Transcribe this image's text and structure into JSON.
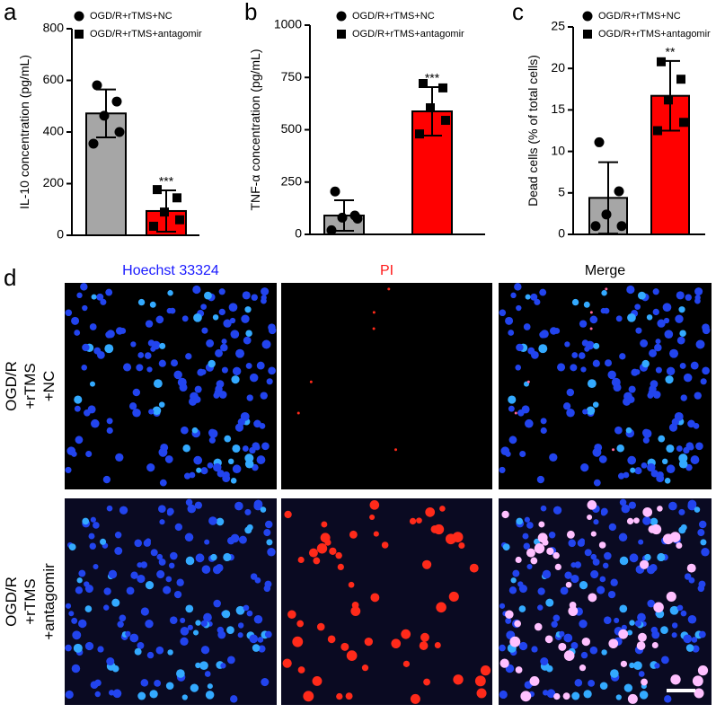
{
  "chart_data": [
    {
      "type": "bar",
      "panel_label": "a",
      "ylabel": "IL-10 concentration (pg/mL)",
      "ylim": [
        0,
        800
      ],
      "yticks": [
        0,
        200,
        400,
        600,
        800
      ],
      "annotation": "***",
      "series": [
        {
          "name": "OGD/R+rTMS+NC",
          "color": "#a6a6a6",
          "marker": "circle",
          "values": [
            472
          ],
          "errors": [
            93
          ],
          "points": [
            581,
            518,
            463,
            400,
            355
          ]
        },
        {
          "name": "OGD/R+rTMS+antagomir",
          "color": "#ff0000",
          "marker": "square",
          "values": [
            94
          ],
          "errors": [
            80
          ],
          "points": [
            177,
            145,
            90,
            60,
            35
          ]
        }
      ]
    },
    {
      "type": "bar",
      "panel_label": "b",
      "ylabel": "TNF-α concentration (pg/mL)",
      "ylim": [
        0,
        1000
      ],
      "yticks": [
        0,
        250,
        500,
        750,
        1000
      ],
      "annotation": "***",
      "series": [
        {
          "name": "OGD/R+rTMS+NC",
          "color": "#a6a6a6",
          "marker": "circle",
          "values": [
            90
          ],
          "errors": [
            73
          ],
          "points": [
            205,
            90,
            80,
            75,
            20
          ]
        },
        {
          "name": "OGD/R+rTMS+antagomir",
          "color": "#ff0000",
          "marker": "square",
          "values": [
            588
          ],
          "errors": [
            116
          ],
          "points": [
            721,
            700,
            605,
            545,
            480
          ]
        }
      ]
    },
    {
      "type": "bar",
      "panel_label": "c",
      "ylabel": "Dead cells (% of total cells)",
      "ylim": [
        0,
        25
      ],
      "yticks": [
        0,
        5,
        10,
        15,
        20,
        25
      ],
      "annotation": "**",
      "series": [
        {
          "name": "OGD/R+rTMS+NC",
          "color": "#a6a6a6",
          "marker": "circle",
          "values": [
            4.4
          ],
          "errors": [
            4.3
          ],
          "points": [
            11.1,
            5.2,
            2.4,
            1.0,
            1.0
          ]
        },
        {
          "name": "OGD/R+rTMS+antagomir",
          "color": "#ff0000",
          "marker": "square",
          "values": [
            16.7
          ],
          "errors": [
            4.2
          ],
          "points": [
            20.8,
            18.7,
            16.2,
            13.5,
            12.5
          ]
        }
      ]
    }
  ],
  "image_panel": {
    "panel_label": "d",
    "columns": [
      "Hoechst 33324",
      "PI",
      "Merge"
    ],
    "rows": [
      [
        "OGD/R",
        "+rTMS",
        "+NC"
      ],
      [
        "OGD/R",
        "+rTMS",
        "+antagomir"
      ]
    ]
  }
}
